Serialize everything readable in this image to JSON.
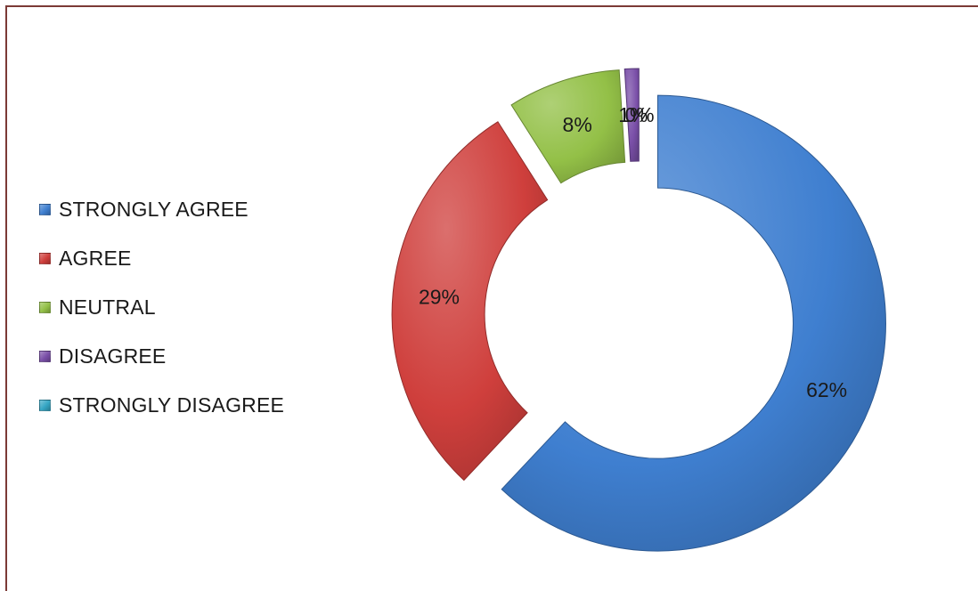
{
  "chart_data": {
    "type": "pie",
    "variant": "doughnut-exploded",
    "categories": [
      "STRONGLY AGREE",
      "AGREE",
      "NEUTRAL",
      "DISAGREE",
      "STRONGLY DISAGREE"
    ],
    "values": [
      62,
      29,
      8,
      1,
      0
    ],
    "data_labels": [
      "62%",
      "29%",
      "8%",
      "1%",
      "0%"
    ],
    "colors": [
      "#3f7fd0",
      "#cf3f3c",
      "#93c047",
      "#7a4fa8",
      "#35a6c4"
    ],
    "legend_position": "left"
  }
}
